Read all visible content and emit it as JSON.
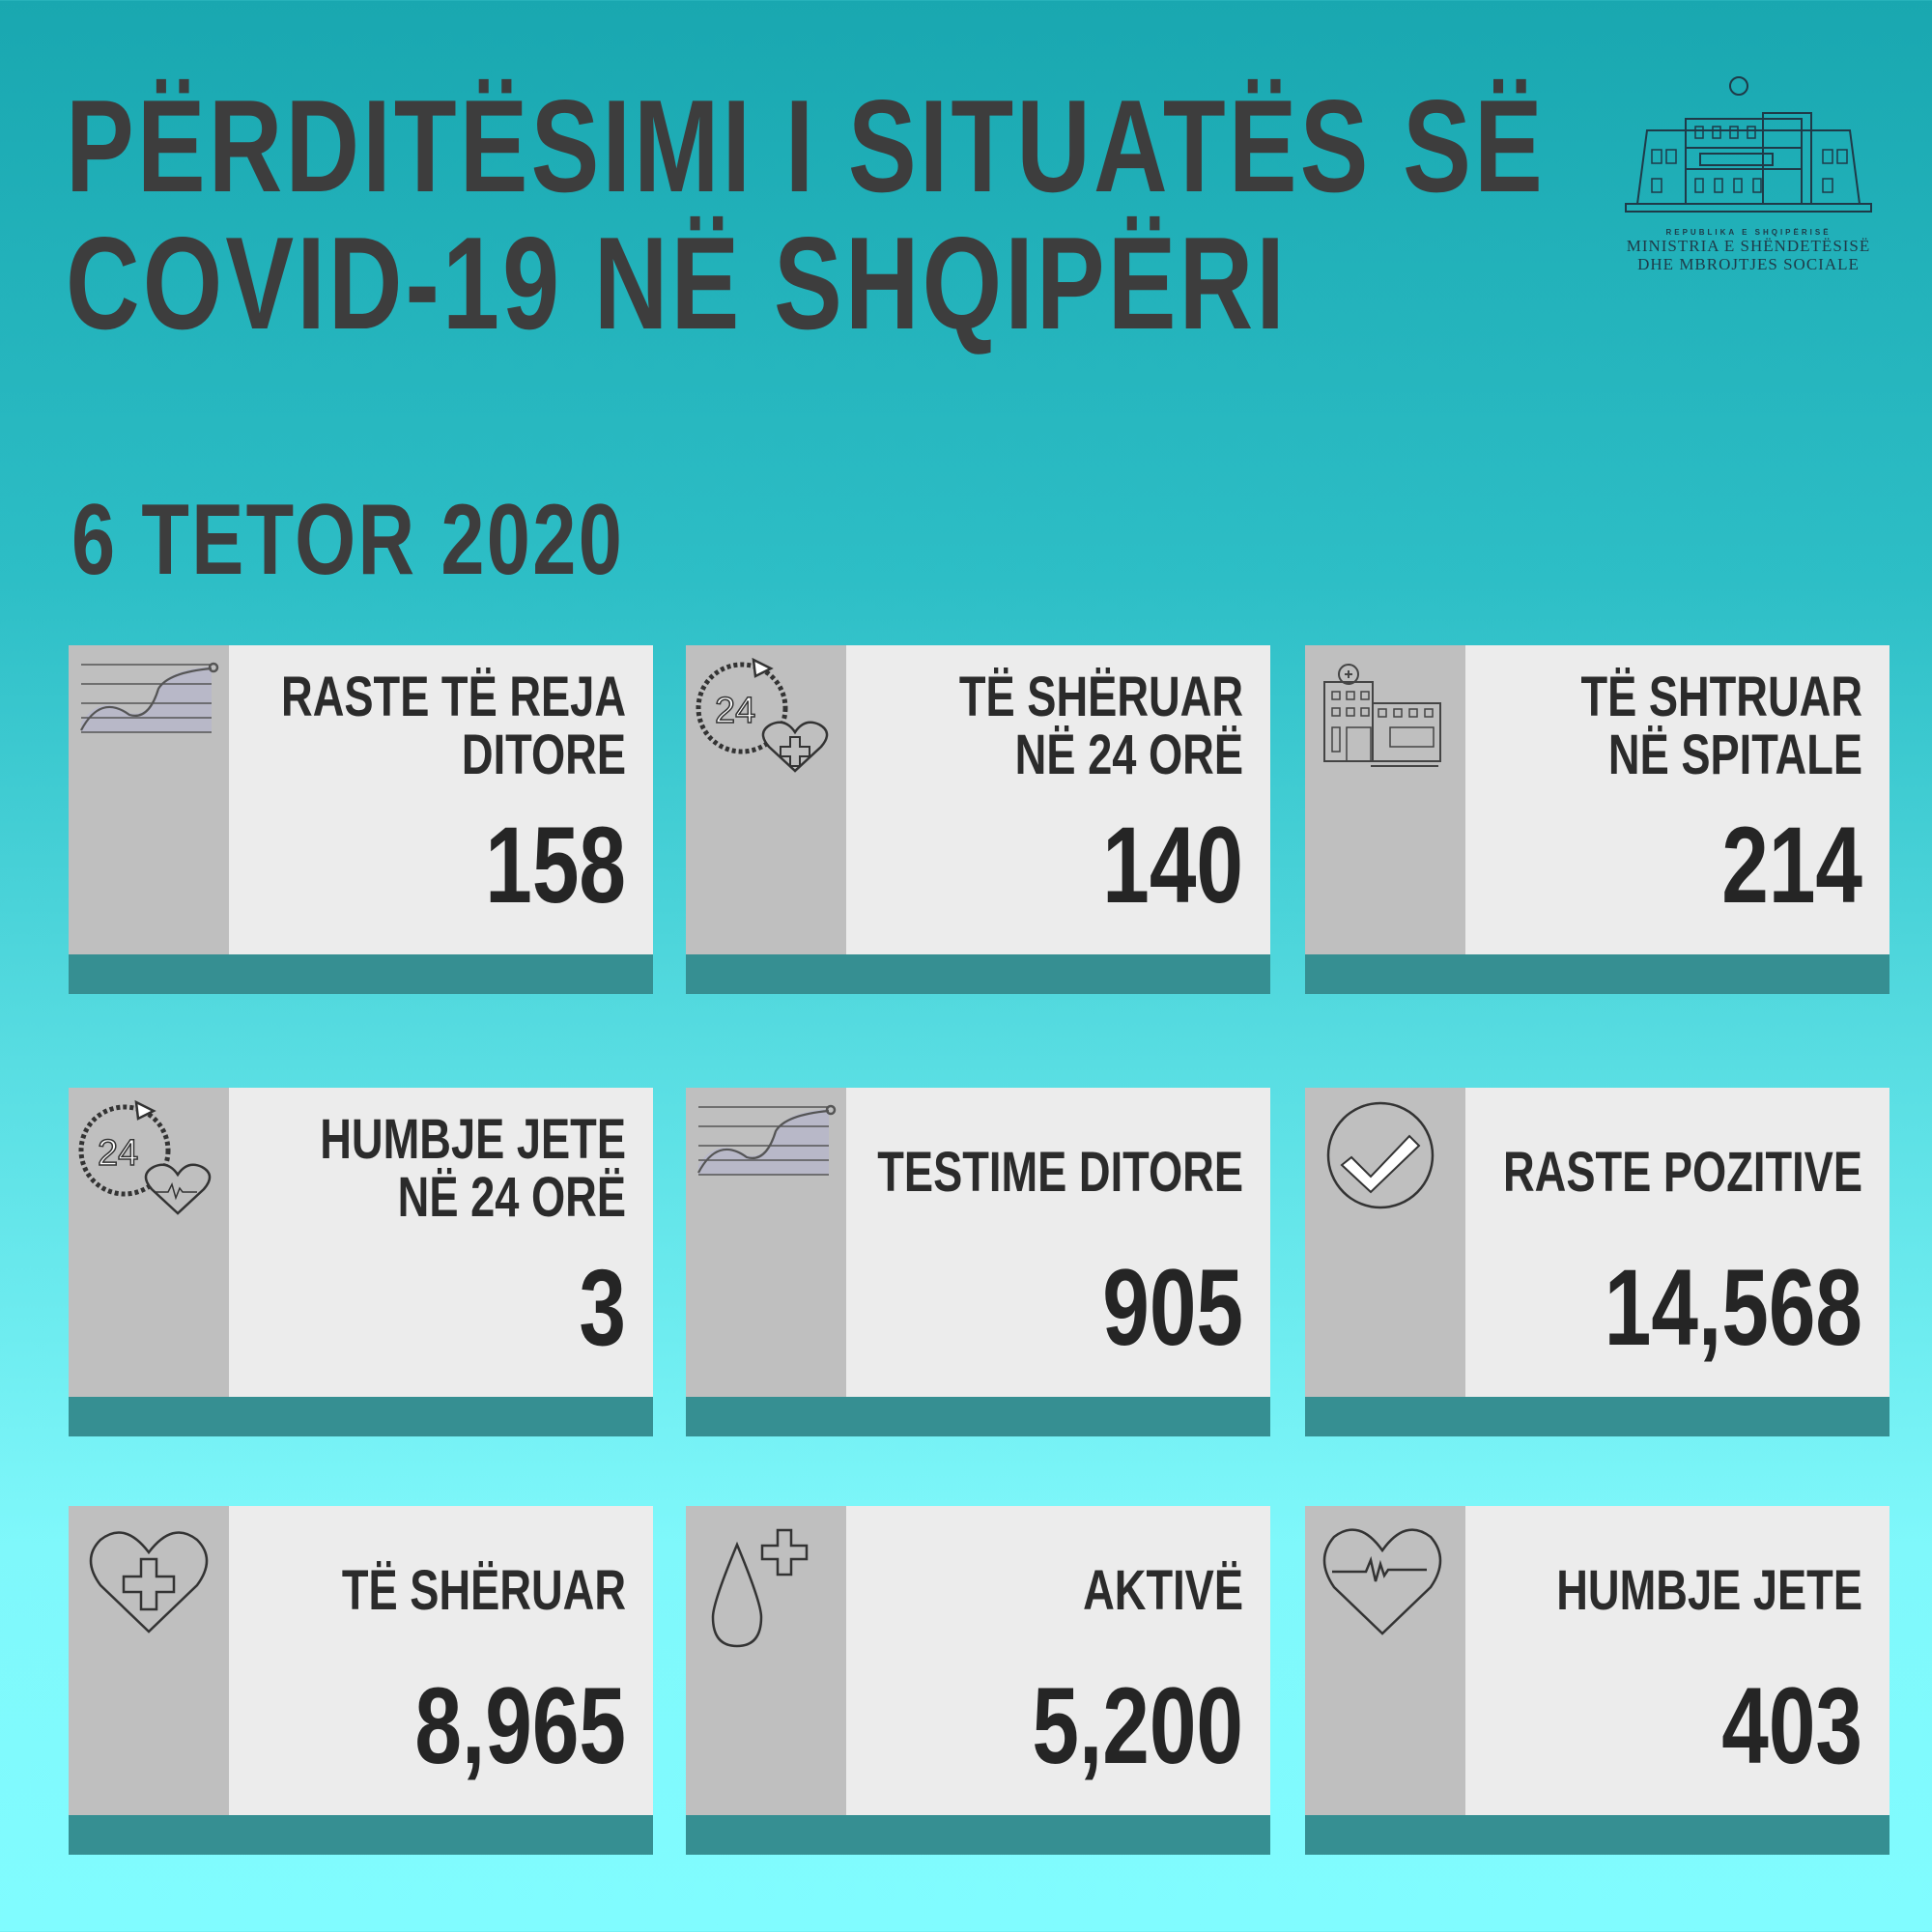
{
  "header": {
    "title_line1": "PËRDITËSIMI I SITUATËS SË",
    "title_line2": "COVID-19 NË SHQIPËRI",
    "date": "6 TETOR 2020"
  },
  "logo": {
    "republic": "REPUBLIKA E SHQIPËRISË",
    "ministry_line1": "MINISTRIA E SHËNDETËSISË",
    "ministry_line2": "DHE MBROJTJES SOCIALE"
  },
  "colors": {
    "footer": "#368f92",
    "card": "#ececec",
    "side": "#bfbfbf",
    "text": "#2b2b2b"
  },
  "cards": [
    {
      "icon": "line-chart-icon",
      "label1": "RASTE TË REJA",
      "label2": "DITORE",
      "value": "158"
    },
    {
      "icon": "24h-heart-plus-icon",
      "label1": "TË SHËRUAR",
      "label2": "NË 24 ORË",
      "value": "140"
    },
    {
      "icon": "hospital-icon",
      "label1": "TË SHTRUAR",
      "label2": "NË SPITALE",
      "value": "214"
    },
    {
      "icon": "24h-heart-pulse-icon",
      "label1": "HUMBJE JETE",
      "label2": "NË 24 ORË",
      "value": "3"
    },
    {
      "icon": "line-chart-icon",
      "label1": "TESTIME DITORE",
      "label2": "",
      "value": "905"
    },
    {
      "icon": "check-circle-icon",
      "label1": "RASTE POZITIVE",
      "label2": "",
      "value": "14,568"
    },
    {
      "icon": "heart-plus-icon",
      "label1": "TË SHËRUAR",
      "label2": "",
      "value": "8,965"
    },
    {
      "icon": "drop-plus-icon",
      "label1": "AKTIVË",
      "label2": "",
      "value": "5,200"
    },
    {
      "icon": "heart-pulse-icon",
      "label1": "HUMBJE JETE",
      "label2": "",
      "value": "403"
    }
  ]
}
